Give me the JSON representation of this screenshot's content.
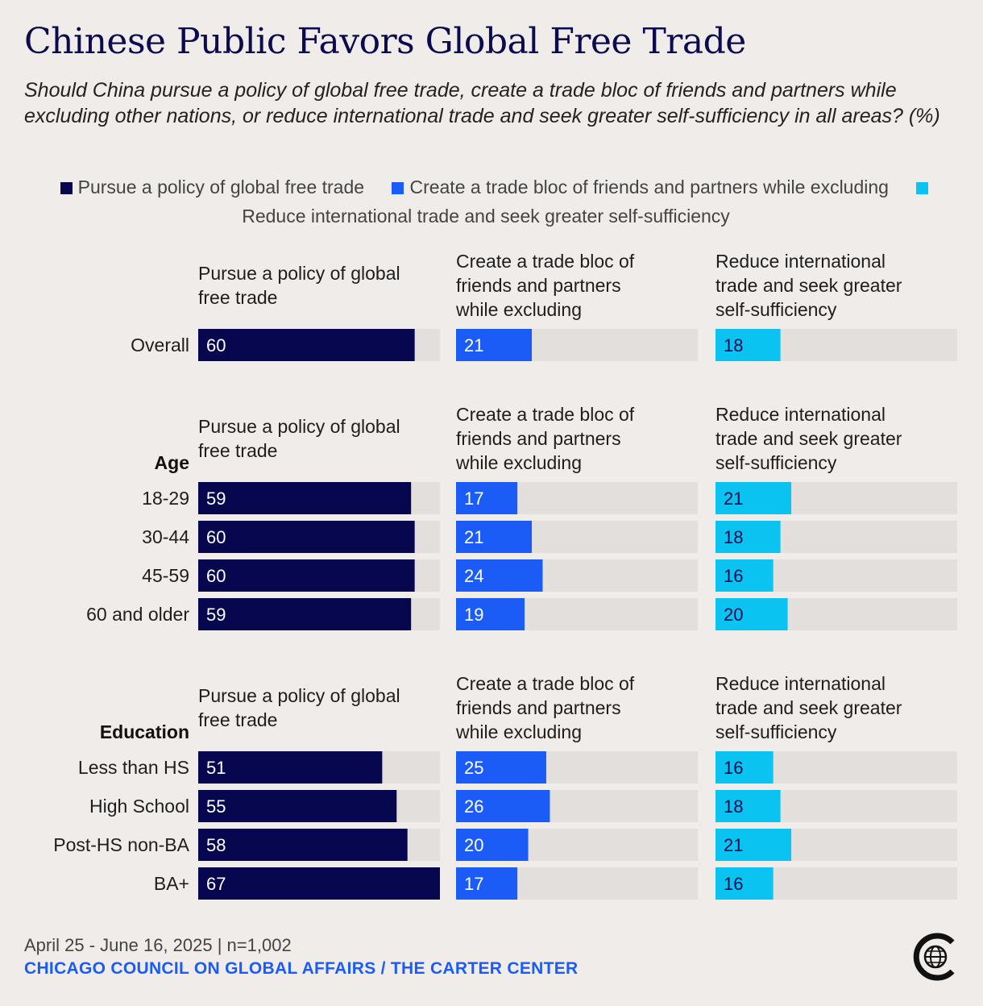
{
  "title": "Chinese Public Favors Global Free Trade",
  "subtitle": "Should China pursue a policy of global free trade, create a trade bloc of friends and partners while excluding other nations, or reduce international trade and seek greater self-sufficiency in all areas? (%)",
  "footer": {
    "date": "April 25 - June 16, 2025 | n=1,002",
    "source": "CHICAGO COUNCIL ON GLOBAL AFFAIRS / THE CARTER CENTER"
  },
  "logo_icon": "globe-c-logo-icon",
  "chart_data": {
    "type": "bar",
    "orientation": "horizontal",
    "xlim": [
      0,
      67
    ],
    "colors": {
      "track": "#e3dfdc",
      "series": [
        "#07074f",
        "#1a5cf5",
        "#0ac3f0"
      ],
      "label_text": [
        "#ffffff",
        "#ffffff",
        "#0b0b4f"
      ]
    },
    "legend": {
      "position": "top-center",
      "entries": [
        "Pursue a policy of global free trade",
        "Create a trade bloc of friends and partners while excluding",
        "Reduce international trade and seek greater self-sufficiency"
      ]
    },
    "columns": [
      "Pursue a policy of global free trade",
      "Create a trade bloc of friends and partners while excluding",
      "Reduce international trade and seek greater self-sufficiency"
    ],
    "groups": [
      {
        "heading": "",
        "rows": [
          {
            "label": "Overall",
            "values": [
              60,
              21,
              18
            ]
          }
        ]
      },
      {
        "heading": "Age",
        "rows": [
          {
            "label": "18-29",
            "values": [
              59,
              17,
              21
            ]
          },
          {
            "label": "30-44",
            "values": [
              60,
              21,
              18
            ]
          },
          {
            "label": "45-59",
            "values": [
              60,
              24,
              16
            ]
          },
          {
            "label": "60 and older",
            "values": [
              59,
              19,
              20
            ]
          }
        ]
      },
      {
        "heading": "Education",
        "rows": [
          {
            "label": "Less than HS",
            "values": [
              51,
              25,
              16
            ]
          },
          {
            "label": "High School",
            "values": [
              55,
              26,
              18
            ]
          },
          {
            "label": "Post-HS non-BA",
            "values": [
              58,
              20,
              21
            ]
          },
          {
            "label": "BA+",
            "values": [
              67,
              17,
              16
            ]
          }
        ]
      }
    ]
  }
}
